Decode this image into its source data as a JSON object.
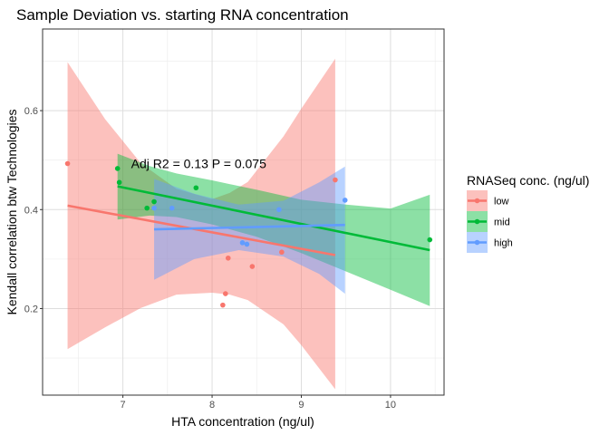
{
  "chart_data": {
    "type": "scatter",
    "title": "Sample Deviation vs. starting RNA concentration",
    "xlabel": "HTA concentration (ng/ul)",
    "ylabel": "Kendall correlation btw Technologies",
    "xlim": [
      6.1,
      10.6
    ],
    "ylim": [
      0.025,
      0.765
    ],
    "x_ticks": [
      7,
      8,
      9,
      10
    ],
    "y_ticks": [
      0.2,
      0.4,
      0.6
    ],
    "x_tick_labels": [
      "7",
      "8",
      "9",
      "10"
    ],
    "y_tick_labels": [
      "0.2",
      "0.4",
      "0.6"
    ],
    "grid": true,
    "annotation": {
      "text": "Adj R2 =  0.13  P = 0.075",
      "x": 7.85,
      "y": 0.493
    },
    "legend": {
      "title": "RNASeq conc. (ng/ul)",
      "position": "right"
    },
    "series": [
      {
        "name": "low",
        "color": "#F8766D",
        "points": [
          {
            "x": 6.38,
            "y": 0.493
          },
          {
            "x": 8.12,
            "y": 0.207
          },
          {
            "x": 8.15,
            "y": 0.23
          },
          {
            "x": 8.18,
            "y": 0.302
          },
          {
            "x": 8.45,
            "y": 0.285
          },
          {
            "x": 8.78,
            "y": 0.314
          },
          {
            "x": 9.38,
            "y": 0.46
          }
        ],
        "fit": {
          "x0": 6.38,
          "y0": 0.408,
          "x1": 9.38,
          "y1": 0.308
        },
        "ribbon": {
          "x": [
            6.38,
            6.8,
            7.2,
            7.6,
            8.0,
            8.2,
            8.4,
            8.8,
            9.0,
            9.38
          ],
          "lower": [
            0.118,
            0.162,
            0.201,
            0.228,
            0.232,
            0.228,
            0.217,
            0.168,
            0.126,
            0.037
          ],
          "upper": [
            0.698,
            0.583,
            0.494,
            0.442,
            0.421,
            0.434,
            0.456,
            0.548,
            0.604,
            0.705
          ]
        }
      },
      {
        "name": "mid",
        "color": "#00BA38",
        "points": [
          {
            "x": 6.94,
            "y": 0.483
          },
          {
            "x": 6.96,
            "y": 0.455
          },
          {
            "x": 7.27,
            "y": 0.403
          },
          {
            "x": 7.35,
            "y": 0.416
          },
          {
            "x": 7.82,
            "y": 0.444
          },
          {
            "x": 10.44,
            "y": 0.339
          }
        ],
        "fit": {
          "x0": 6.94,
          "y0": 0.447,
          "x1": 10.44,
          "y1": 0.318
        },
        "ribbon": {
          "x": [
            6.94,
            7.3,
            7.6,
            8.0,
            8.5,
            9.0,
            9.5,
            10.0,
            10.44
          ],
          "lower": [
            0.38,
            0.388,
            0.385,
            0.37,
            0.345,
            0.312,
            0.275,
            0.238,
            0.205
          ],
          "upper": [
            0.513,
            0.488,
            0.473,
            0.459,
            0.44,
            0.42,
            0.41,
            0.402,
            0.43
          ]
        }
      },
      {
        "name": "high",
        "color": "#619CFF",
        "points": [
          {
            "x": 7.35,
            "y": 0.403
          },
          {
            "x": 7.55,
            "y": 0.403
          },
          {
            "x": 8.34,
            "y": 0.333
          },
          {
            "x": 8.39,
            "y": 0.33
          },
          {
            "x": 8.75,
            "y": 0.4
          },
          {
            "x": 9.49,
            "y": 0.419
          }
        ],
        "fit": {
          "x0": 7.35,
          "y0": 0.36,
          "x1": 9.49,
          "y1": 0.369
        },
        "ribbon": {
          "x": [
            7.35,
            7.8,
            8.3,
            8.8,
            9.2,
            9.49
          ],
          "lower": [
            0.258,
            0.3,
            0.318,
            0.305,
            0.27,
            0.23
          ],
          "upper": [
            0.462,
            0.432,
            0.41,
            0.418,
            0.455,
            0.487
          ]
        }
      }
    ]
  }
}
